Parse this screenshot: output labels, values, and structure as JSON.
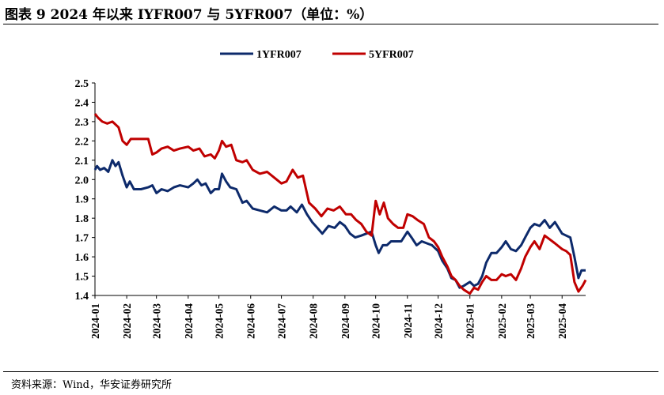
{
  "header": {
    "title": "图表 9 2024 年以来 IYFR007 与 5YFR007（单位：%）"
  },
  "footer": {
    "source": "资料来源：Wind，华安证券研究所"
  },
  "colors": {
    "series_1": "#0d2a6b",
    "series_2": "#c00000"
  },
  "chart_data": {
    "type": "line",
    "title": "",
    "xlabel": "",
    "ylabel": "",
    "ylim": [
      1.4,
      2.5
    ],
    "yticks": [
      "1.4",
      "1.5",
      "1.6",
      "1.7",
      "1.8",
      "1.9",
      "2.0",
      "2.1",
      "2.2",
      "2.3",
      "2.4",
      "2.5"
    ],
    "xticks": [
      "2024-01",
      "2024-02",
      "2024-03",
      "2024-04",
      "2024-05",
      "2024-06",
      "2024-07",
      "2024-08",
      "2024-09",
      "2024-10",
      "2024-11",
      "2024-12",
      "2025-01",
      "2025-02",
      "2025-03",
      "2025-04"
    ],
    "xlim": [
      "2024-01-01",
      "2025-04-24"
    ],
    "legend_position": "top-center",
    "grid": false,
    "series": [
      {
        "name": "1YFR007",
        "color": "#0d2a6b",
        "points": [
          [
            "2024-01-01",
            2.05
          ],
          [
            "2024-01-03",
            2.07
          ],
          [
            "2024-01-06",
            2.05
          ],
          [
            "2024-01-10",
            2.06
          ],
          [
            "2024-01-14",
            2.04
          ],
          [
            "2024-01-18",
            2.1
          ],
          [
            "2024-01-21",
            2.07
          ],
          [
            "2024-01-24",
            2.09
          ],
          [
            "2024-01-28",
            2.02
          ],
          [
            "2024-02-01",
            1.96
          ],
          [
            "2024-02-04",
            1.99
          ],
          [
            "2024-02-08",
            1.95
          ],
          [
            "2024-02-15",
            1.95
          ],
          [
            "2024-02-22",
            1.96
          ],
          [
            "2024-02-26",
            1.97
          ],
          [
            "2024-03-01",
            1.93
          ],
          [
            "2024-03-06",
            1.95
          ],
          [
            "2024-03-12",
            1.94
          ],
          [
            "2024-03-18",
            1.96
          ],
          [
            "2024-03-24",
            1.97
          ],
          [
            "2024-04-01",
            1.96
          ],
          [
            "2024-04-06",
            1.98
          ],
          [
            "2024-04-10",
            2.0
          ],
          [
            "2024-04-14",
            1.97
          ],
          [
            "2024-04-18",
            1.98
          ],
          [
            "2024-04-23",
            1.93
          ],
          [
            "2024-04-27",
            1.95
          ],
          [
            "2024-05-01",
            1.95
          ],
          [
            "2024-05-04",
            2.03
          ],
          [
            "2024-05-08",
            1.99
          ],
          [
            "2024-05-12",
            1.96
          ],
          [
            "2024-05-18",
            1.95
          ],
          [
            "2024-05-24",
            1.88
          ],
          [
            "2024-05-28",
            1.89
          ],
          [
            "2024-06-03",
            1.85
          ],
          [
            "2024-06-10",
            1.84
          ],
          [
            "2024-06-17",
            1.83
          ],
          [
            "2024-06-24",
            1.86
          ],
          [
            "2024-07-01",
            1.84
          ],
          [
            "2024-07-06",
            1.84
          ],
          [
            "2024-07-10",
            1.86
          ],
          [
            "2024-07-16",
            1.83
          ],
          [
            "2024-07-21",
            1.87
          ],
          [
            "2024-07-26",
            1.82
          ],
          [
            "2024-07-31",
            1.78
          ],
          [
            "2024-08-05",
            1.75
          ],
          [
            "2024-08-10",
            1.72
          ],
          [
            "2024-08-16",
            1.76
          ],
          [
            "2024-08-22",
            1.75
          ],
          [
            "2024-08-27",
            1.78
          ],
          [
            "2024-09-01",
            1.76
          ],
          [
            "2024-09-06",
            1.72
          ],
          [
            "2024-09-11",
            1.7
          ],
          [
            "2024-09-17",
            1.71
          ],
          [
            "2024-09-22",
            1.72
          ],
          [
            "2024-09-27",
            1.73
          ],
          [
            "2024-10-01",
            1.66
          ],
          [
            "2024-10-04",
            1.62
          ],
          [
            "2024-10-08",
            1.66
          ],
          [
            "2024-10-12",
            1.66
          ],
          [
            "2024-10-16",
            1.68
          ],
          [
            "2024-10-20",
            1.68
          ],
          [
            "2024-10-26",
            1.68
          ],
          [
            "2024-11-01",
            1.73
          ],
          [
            "2024-11-05",
            1.7
          ],
          [
            "2024-11-10",
            1.66
          ],
          [
            "2024-11-15",
            1.68
          ],
          [
            "2024-11-20",
            1.67
          ],
          [
            "2024-11-25",
            1.66
          ],
          [
            "2024-12-01",
            1.63
          ],
          [
            "2024-12-05",
            1.58
          ],
          [
            "2024-12-10",
            1.54
          ],
          [
            "2024-12-14",
            1.49
          ],
          [
            "2024-12-18",
            1.48
          ],
          [
            "2024-12-22",
            1.44
          ],
          [
            "2024-12-26",
            1.45
          ],
          [
            "2025-01-01",
            1.47
          ],
          [
            "2025-01-05",
            1.45
          ],
          [
            "2025-01-09",
            1.46
          ],
          [
            "2025-01-13",
            1.5
          ],
          [
            "2025-01-17",
            1.57
          ],
          [
            "2025-01-22",
            1.62
          ],
          [
            "2025-01-27",
            1.62
          ],
          [
            "2025-02-01",
            1.65
          ],
          [
            "2025-02-05",
            1.68
          ],
          [
            "2025-02-10",
            1.64
          ],
          [
            "2025-02-15",
            1.63
          ],
          [
            "2025-02-20",
            1.66
          ],
          [
            "2025-02-24",
            1.7
          ],
          [
            "2025-03-01",
            1.75
          ],
          [
            "2025-03-05",
            1.77
          ],
          [
            "2025-03-10",
            1.76
          ],
          [
            "2025-03-15",
            1.79
          ],
          [
            "2025-03-20",
            1.75
          ],
          [
            "2025-03-25",
            1.78
          ],
          [
            "2025-04-01",
            1.72
          ],
          [
            "2025-04-05",
            1.71
          ],
          [
            "2025-04-09",
            1.7
          ],
          [
            "2025-04-13",
            1.6
          ],
          [
            "2025-04-17",
            1.49
          ],
          [
            "2025-04-20",
            1.53
          ],
          [
            "2025-04-24",
            1.53
          ]
        ]
      },
      {
        "name": "5YFR007",
        "color": "#c00000",
        "points": [
          [
            "2024-01-01",
            2.34
          ],
          [
            "2024-01-04",
            2.32
          ],
          [
            "2024-01-08",
            2.3
          ],
          [
            "2024-01-13",
            2.29
          ],
          [
            "2024-01-18",
            2.3
          ],
          [
            "2024-01-24",
            2.27
          ],
          [
            "2024-01-28",
            2.2
          ],
          [
            "2024-02-01",
            2.18
          ],
          [
            "2024-02-05",
            2.21
          ],
          [
            "2024-02-12",
            2.21
          ],
          [
            "2024-02-22",
            2.21
          ],
          [
            "2024-02-26",
            2.13
          ],
          [
            "2024-03-01",
            2.14
          ],
          [
            "2024-03-06",
            2.16
          ],
          [
            "2024-03-12",
            2.17
          ],
          [
            "2024-03-18",
            2.15
          ],
          [
            "2024-03-24",
            2.16
          ],
          [
            "2024-04-01",
            2.17
          ],
          [
            "2024-04-06",
            2.15
          ],
          [
            "2024-04-12",
            2.16
          ],
          [
            "2024-04-17",
            2.12
          ],
          [
            "2024-04-23",
            2.13
          ],
          [
            "2024-04-27",
            2.11
          ],
          [
            "2024-05-01",
            2.15
          ],
          [
            "2024-05-04",
            2.2
          ],
          [
            "2024-05-08",
            2.17
          ],
          [
            "2024-05-13",
            2.18
          ],
          [
            "2024-05-18",
            2.1
          ],
          [
            "2024-05-24",
            2.09
          ],
          [
            "2024-05-28",
            2.1
          ],
          [
            "2024-06-03",
            2.05
          ],
          [
            "2024-06-10",
            2.03
          ],
          [
            "2024-06-17",
            2.04
          ],
          [
            "2024-06-24",
            2.01
          ],
          [
            "2024-07-01",
            1.98
          ],
          [
            "2024-07-06",
            1.99
          ],
          [
            "2024-07-12",
            2.05
          ],
          [
            "2024-07-17",
            2.01
          ],
          [
            "2024-07-22",
            2.02
          ],
          [
            "2024-07-28",
            1.88
          ],
          [
            "2024-08-03",
            1.85
          ],
          [
            "2024-08-09",
            1.81
          ],
          [
            "2024-08-15",
            1.85
          ],
          [
            "2024-08-21",
            1.84
          ],
          [
            "2024-08-27",
            1.86
          ],
          [
            "2024-09-02",
            1.82
          ],
          [
            "2024-09-07",
            1.82
          ],
          [
            "2024-09-12",
            1.79
          ],
          [
            "2024-09-17",
            1.77
          ],
          [
            "2024-09-22",
            1.73
          ],
          [
            "2024-09-27",
            1.71
          ],
          [
            "2024-10-01",
            1.89
          ],
          [
            "2024-10-05",
            1.82
          ],
          [
            "2024-10-09",
            1.88
          ],
          [
            "2024-10-13",
            1.8
          ],
          [
            "2024-10-18",
            1.77
          ],
          [
            "2024-10-23",
            1.75
          ],
          [
            "2024-10-28",
            1.75
          ],
          [
            "2024-11-01",
            1.82
          ],
          [
            "2024-11-06",
            1.81
          ],
          [
            "2024-11-11",
            1.79
          ],
          [
            "2024-11-17",
            1.77
          ],
          [
            "2024-11-22",
            1.7
          ],
          [
            "2024-11-27",
            1.68
          ],
          [
            "2024-12-01",
            1.65
          ],
          [
            "2024-12-05",
            1.6
          ],
          [
            "2024-12-10",
            1.55
          ],
          [
            "2024-12-14",
            1.5
          ],
          [
            "2024-12-18",
            1.48
          ],
          [
            "2024-12-22",
            1.45
          ],
          [
            "2024-12-26",
            1.43
          ],
          [
            "2025-01-01",
            1.41
          ],
          [
            "2025-01-05",
            1.44
          ],
          [
            "2025-01-09",
            1.43
          ],
          [
            "2025-01-13",
            1.47
          ],
          [
            "2025-01-17",
            1.5
          ],
          [
            "2025-01-22",
            1.48
          ],
          [
            "2025-01-27",
            1.48
          ],
          [
            "2025-02-01",
            1.51
          ],
          [
            "2025-02-05",
            1.5
          ],
          [
            "2025-02-10",
            1.51
          ],
          [
            "2025-02-15",
            1.48
          ],
          [
            "2025-02-20",
            1.54
          ],
          [
            "2025-02-24",
            1.6
          ],
          [
            "2025-03-01",
            1.65
          ],
          [
            "2025-03-05",
            1.68
          ],
          [
            "2025-03-10",
            1.64
          ],
          [
            "2025-03-15",
            1.71
          ],
          [
            "2025-03-20",
            1.69
          ],
          [
            "2025-03-25",
            1.67
          ],
          [
            "2025-04-01",
            1.64
          ],
          [
            "2025-04-05",
            1.63
          ],
          [
            "2025-04-09",
            1.61
          ],
          [
            "2025-04-13",
            1.47
          ],
          [
            "2025-04-17",
            1.42
          ],
          [
            "2025-04-21",
            1.45
          ],
          [
            "2025-04-24",
            1.48
          ]
        ]
      }
    ]
  }
}
